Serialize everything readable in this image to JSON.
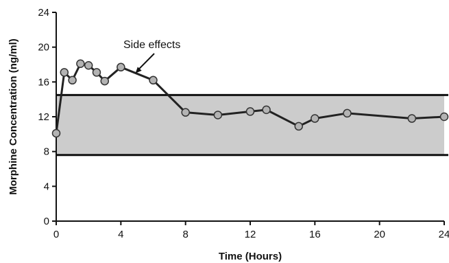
{
  "chart_data": {
    "type": "line",
    "xlabel": "Time (Hours)",
    "ylabel": "Morphine Concentration (ng/ml)",
    "xlim": [
      0,
      24
    ],
    "ylim": [
      0,
      24
    ],
    "xticks": [
      "0",
      "4",
      "8",
      "12",
      "16",
      "20",
      "24"
    ],
    "yticks": [
      "0",
      "4",
      "8",
      "12",
      "16",
      "20",
      "24"
    ],
    "therapeutic_band": [
      7.6,
      14.5
    ],
    "band_color": "#cccccc",
    "series": [
      {
        "marker_color": "#b3b3b3",
        "line_color": "#222222",
        "x": [
          0,
          0.5,
          1,
          1.5,
          2,
          2.5,
          3,
          4,
          6,
          8,
          10,
          12,
          13,
          15,
          16,
          18,
          22,
          24
        ],
        "y": [
          10.1,
          17.1,
          16.2,
          18.1,
          17.9,
          17.1,
          16.1,
          17.7,
          16.2,
          12.5,
          12.2,
          12.6,
          12.8,
          10.9,
          11.8,
          12.4,
          11.8,
          12.0
        ]
      }
    ],
    "annotations": [
      {
        "text": "Side effects",
        "points_to": {
          "x": 4.9,
          "y": 17.0
        }
      }
    ]
  }
}
